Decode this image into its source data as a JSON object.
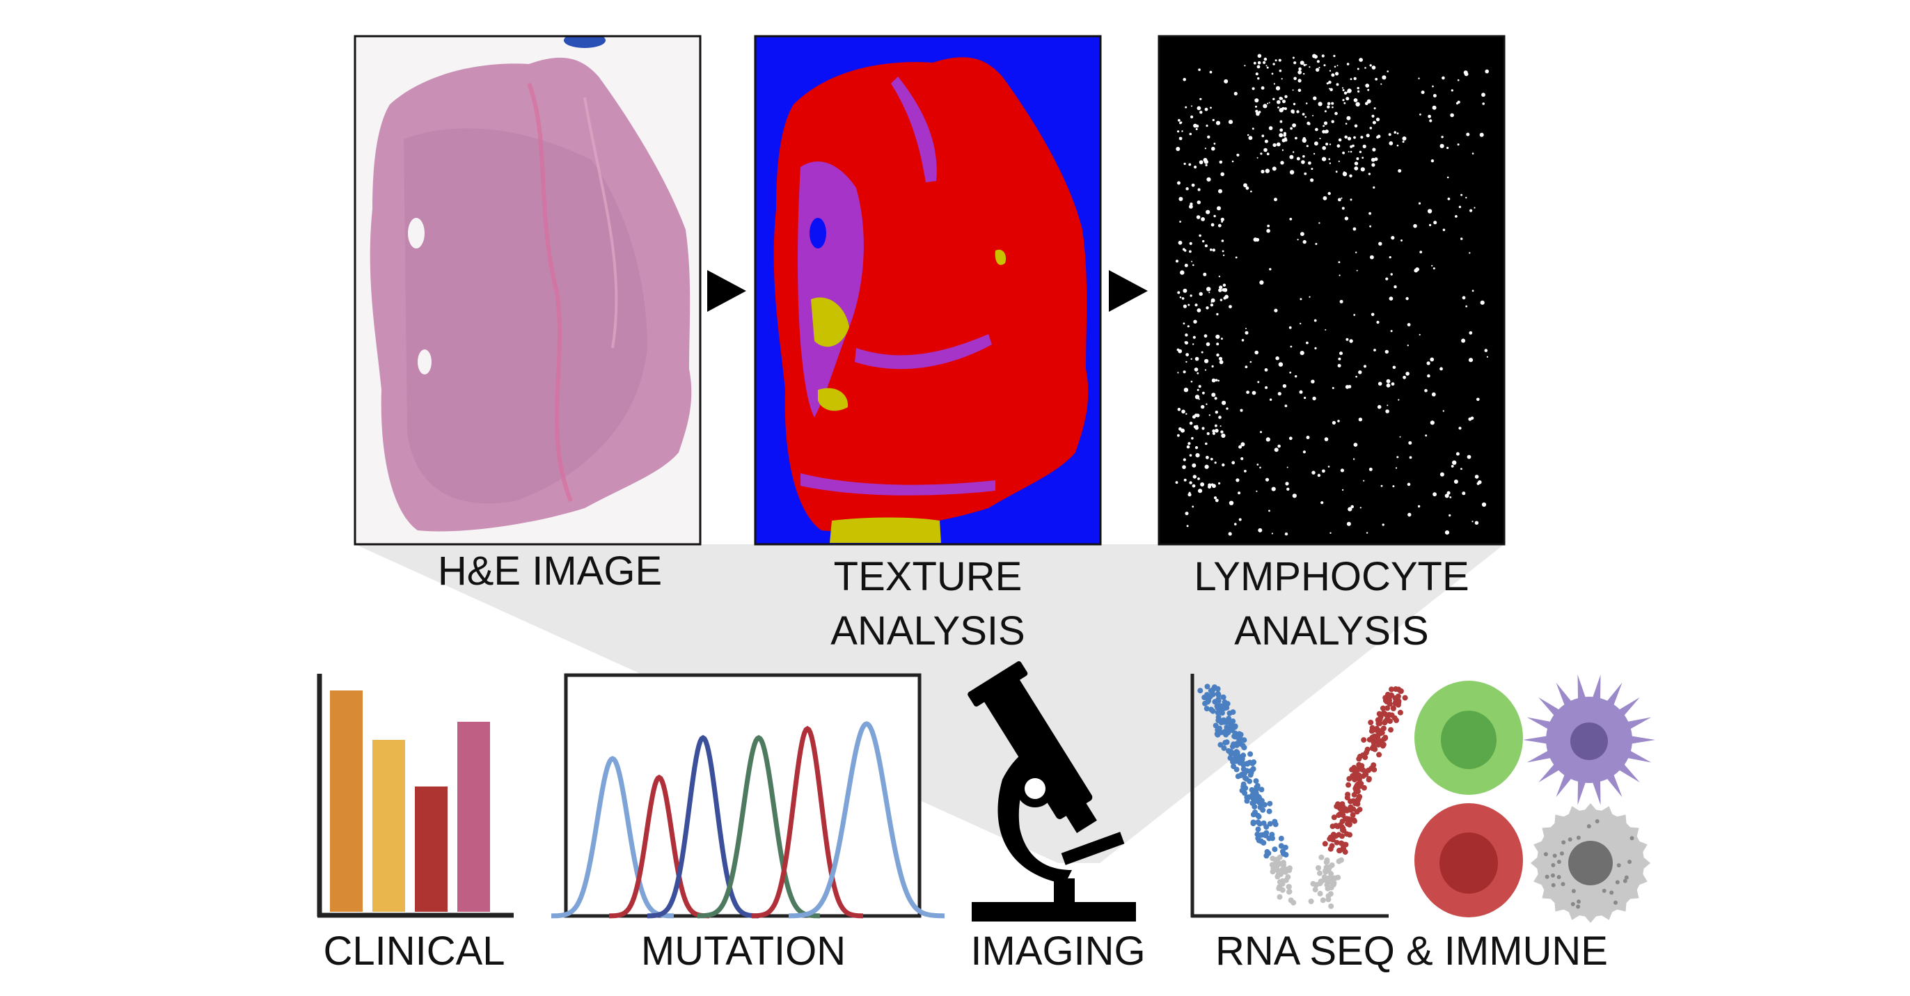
{
  "panels": {
    "he_image": {
      "label": "H&E IMAGE"
    },
    "texture": {
      "label_line1": "TEXTURE",
      "label_line2": "ANALYSIS"
    },
    "lymphocyte": {
      "label_line1": "LYMPHOCYTE",
      "label_line2": "ANALYSIS"
    }
  },
  "modalities": {
    "clinical": {
      "label": "CLINICAL",
      "icon": "bar-chart-icon"
    },
    "mutation": {
      "label": "MUTATION",
      "icon": "sequence-peaks-icon"
    },
    "imaging": {
      "label": "IMAGING",
      "icon": "microscope-icon"
    },
    "rna_seq": {
      "label": "RNA SEQ & IMMUNE",
      "icon": "volcano-plot-and-immune-cells-icon"
    }
  },
  "colors": {
    "he_tissue": "#c98fb5",
    "texture_background": "#0a10f5",
    "texture_tumor": "#e00000",
    "texture_stroma": "#a634c8",
    "texture_immune": "#c8c200",
    "lymph_background": "#000000",
    "clinical_bars": [
      "#d98a35",
      "#e8b64d",
      "#ad3430",
      "#bf5f84"
    ],
    "mutation_peaks": [
      "#7ea3d6",
      "#b0303a",
      "#3b4f9a",
      "#4e7a60",
      "#b0303a",
      "#7ea3d6"
    ],
    "volcano_down": "#4a7fc1",
    "volcano_up": "#b03a3a",
    "volcano_ns": "#c0c0c0",
    "cell_green": "#8ccf6a",
    "cell_purple": "#9b89c9",
    "cell_red": "#c84a4a",
    "cell_grey": "#c8c8c8",
    "funnel": "#e8e8e8"
  }
}
